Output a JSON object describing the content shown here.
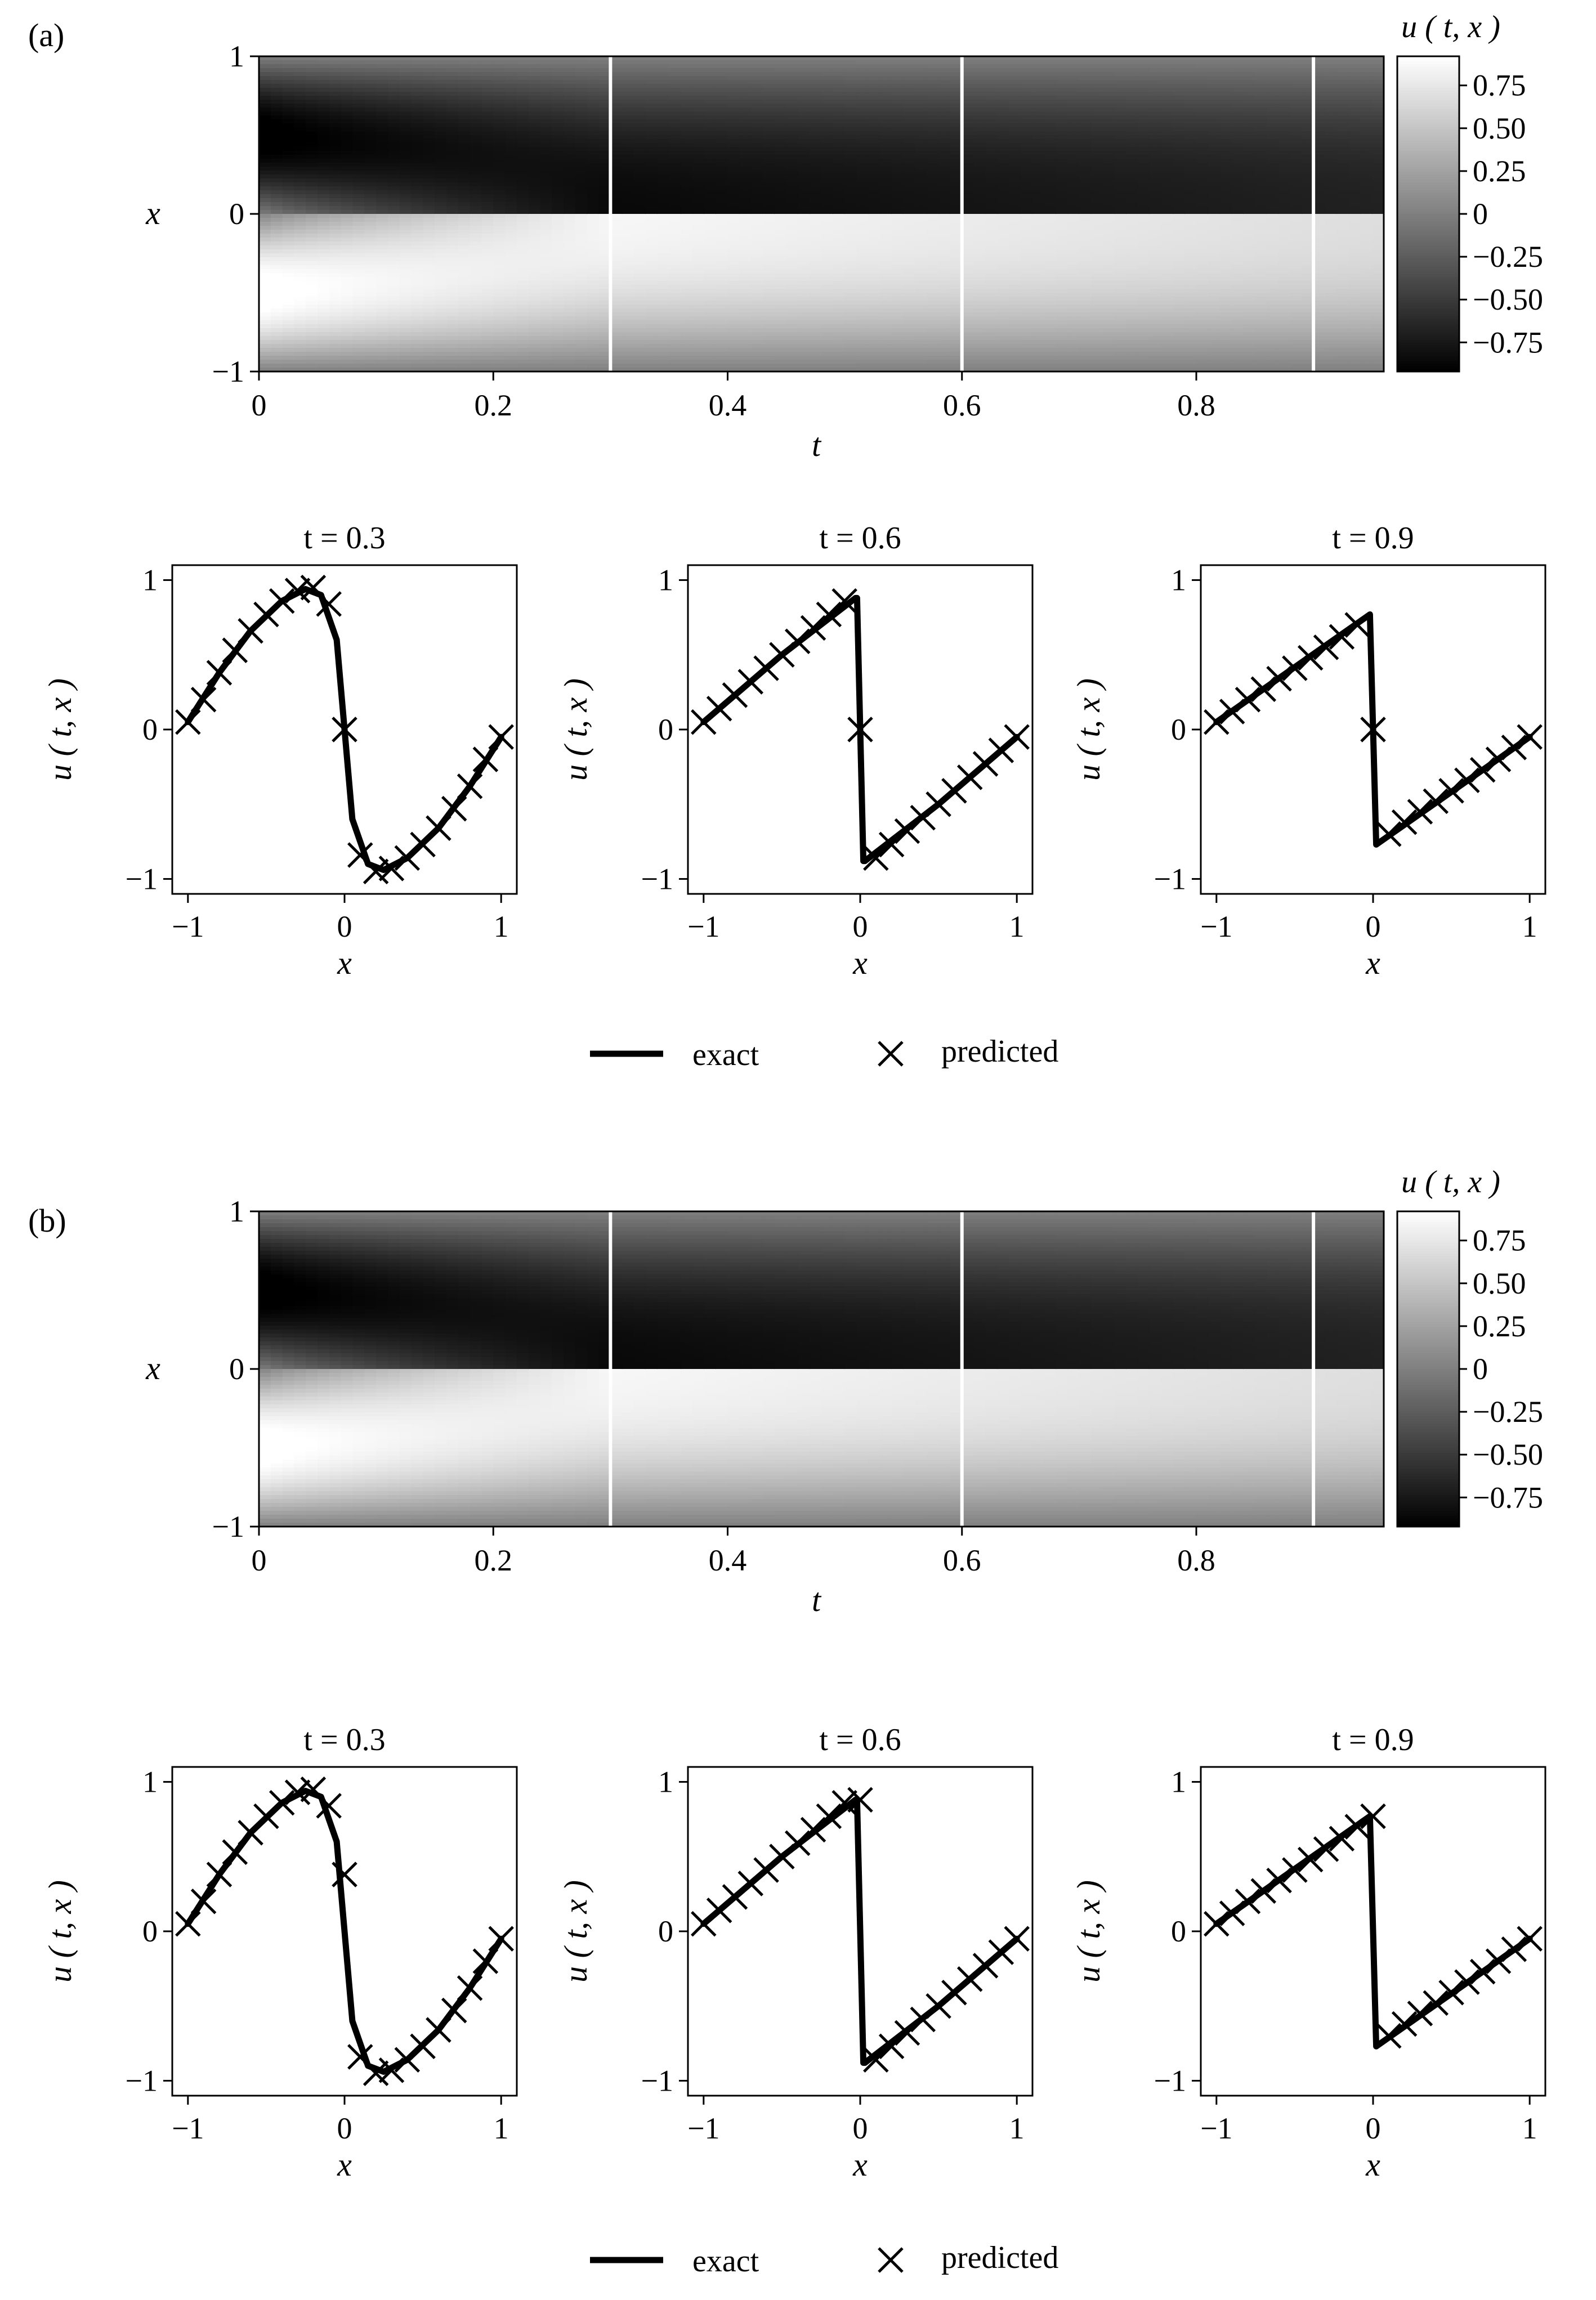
{
  "figure": {
    "panels": [
      {
        "label": "(a)",
        "heatmap": {
          "xlabel": "t",
          "ylabel": "x",
          "xticks": [
            "0",
            "0.2",
            "0.4",
            "0.6",
            "0.8"
          ],
          "yticks": [
            "1",
            "0",
            "−1"
          ],
          "colorbar_title": "u ( t, x )",
          "colorbar_ticks": [
            "0.75",
            "0.50",
            "0.25",
            "0",
            "−0.25",
            "−0.50",
            "−0.75"
          ]
        },
        "slices": [
          {
            "title": "t = 0.3",
            "xlabel": "x",
            "ylabel": "u ( t, x )",
            "xticks": [
              "−1",
              "0",
              "1"
            ],
            "yticks": [
              "1",
              "0",
              "−1"
            ]
          },
          {
            "title": "t = 0.6",
            "xlabel": "x",
            "ylabel": "u ( t, x )",
            "xticks": [
              "−1",
              "0",
              "1"
            ],
            "yticks": [
              "1",
              "0",
              "−1"
            ]
          },
          {
            "title": "t = 0.9",
            "xlabel": "x",
            "ylabel": "u ( t, x )",
            "xticks": [
              "−1",
              "0",
              "1"
            ],
            "yticks": [
              "1",
              "0",
              "−1"
            ]
          }
        ],
        "legend": {
          "exact": "exact",
          "predicted": "predicted"
        }
      },
      {
        "label": "(b)",
        "heatmap": {
          "xlabel": "t",
          "ylabel": "x",
          "xticks": [
            "0",
            "0.2",
            "0.4",
            "0.6",
            "0.8"
          ],
          "yticks": [
            "1",
            "0",
            "−1"
          ],
          "colorbar_title": "u ( t, x )",
          "colorbar_ticks": [
            "0.75",
            "0.50",
            "0.25",
            "0",
            "−0.25",
            "−0.50",
            "−0.75"
          ]
        },
        "slices": [
          {
            "title": "t = 0.3",
            "xlabel": "x",
            "ylabel": "u ( t, x )",
            "xticks": [
              "−1",
              "0",
              "1"
            ],
            "yticks": [
              "1",
              "0",
              "−1"
            ]
          },
          {
            "title": "t = 0.6",
            "xlabel": "x",
            "ylabel": "u ( t, x )",
            "xticks": [
              "−1",
              "0",
              "1"
            ],
            "yticks": [
              "1",
              "0",
              "−1"
            ]
          },
          {
            "title": "t = 0.9",
            "xlabel": "x",
            "ylabel": "u ( t, x )",
            "xticks": [
              "−1",
              "0",
              "1"
            ],
            "yticks": [
              "1",
              "0",
              "−1"
            ]
          }
        ],
        "legend": {
          "exact": "exact",
          "predicted": "predicted"
        }
      }
    ]
  },
  "chart_data": [
    {
      "type": "heatmap",
      "panel": "(a)",
      "xlabel": "t",
      "ylabel": "x",
      "xlim": [
        0,
        0.96
      ],
      "ylim": [
        -1,
        1
      ],
      "colorbar_label": "u ( t, x )",
      "colorbar_range": [
        -0.92,
        0.92
      ],
      "colormap": "gray",
      "vertical_lines_t": [
        0.3,
        0.6,
        0.9
      ],
      "line_color": "#ffffff",
      "description_values": {
        "t": [
          0,
          0.1,
          0.3,
          0.6,
          0.9
        ],
        "peak_positive": [
          0.95,
          0.93,
          0.93,
          0.9,
          0.78
        ],
        "peak_negative": [
          -0.95,
          -0.93,
          -0.93,
          -0.9,
          -0.78
        ]
      }
    },
    {
      "type": "line",
      "panel": "(a)",
      "title": "t = 0.3",
      "xlabel": "x",
      "ylabel": "u ( t, x )",
      "xlim": [
        -1.1,
        1.1
      ],
      "ylim": [
        -1.1,
        1.1
      ],
      "series": [
        {
          "name": "exact",
          "x": [
            -1.0,
            -0.8,
            -0.6,
            -0.4,
            -0.25,
            -0.15,
            -0.05,
            0.0,
            0.05,
            0.15,
            0.25,
            0.4,
            0.6,
            0.8,
            1.0
          ],
          "y": [
            0.05,
            0.38,
            0.66,
            0.86,
            0.94,
            0.9,
            0.6,
            0.0,
            -0.6,
            -0.9,
            -0.94,
            -0.86,
            -0.66,
            -0.38,
            -0.05
          ]
        },
        {
          "name": "predicted",
          "x": [
            -1.0,
            -0.9,
            -0.8,
            -0.7,
            -0.6,
            -0.5,
            -0.4,
            -0.3,
            -0.2,
            -0.1,
            0.0,
            0.1,
            0.2,
            0.3,
            0.4,
            0.5,
            0.6,
            0.7,
            0.8,
            0.9,
            1.0
          ],
          "y": [
            0.05,
            0.2,
            0.38,
            0.53,
            0.66,
            0.77,
            0.86,
            0.93,
            0.95,
            0.84,
            0.0,
            -0.84,
            -0.95,
            -0.93,
            -0.86,
            -0.77,
            -0.66,
            -0.53,
            -0.38,
            -0.2,
            -0.05
          ]
        }
      ]
    },
    {
      "type": "line",
      "panel": "(a)",
      "title": "t = 0.6",
      "xlabel": "x",
      "ylabel": "u ( t, x )",
      "xlim": [
        -1.1,
        1.1
      ],
      "ylim": [
        -1.1,
        1.1
      ],
      "series": [
        {
          "name": "exact",
          "x": [
            -1.0,
            -0.5,
            -0.03,
            -0.02,
            0.0,
            0.02,
            0.03,
            0.5,
            1.0
          ],
          "y": [
            0.05,
            0.5,
            0.88,
            0.88,
            0.0,
            -0.88,
            -0.88,
            -0.5,
            -0.05
          ]
        },
        {
          "name": "predicted",
          "x": [
            -1.0,
            -0.9,
            -0.8,
            -0.7,
            -0.6,
            -0.5,
            -0.4,
            -0.3,
            -0.2,
            -0.1,
            0.0,
            0.1,
            0.2,
            0.3,
            0.4,
            0.5,
            0.6,
            0.7,
            0.8,
            0.9,
            1.0
          ],
          "y": [
            0.05,
            0.14,
            0.23,
            0.32,
            0.41,
            0.5,
            0.59,
            0.68,
            0.77,
            0.86,
            0.0,
            -0.86,
            -0.77,
            -0.68,
            -0.59,
            -0.5,
            -0.41,
            -0.32,
            -0.23,
            -0.14,
            -0.05
          ]
        }
      ]
    },
    {
      "type": "line",
      "panel": "(a)",
      "title": "t = 0.9",
      "xlabel": "x",
      "ylabel": "u ( t, x )",
      "xlim": [
        -1.1,
        1.1
      ],
      "ylim": [
        -1.1,
        1.1
      ],
      "series": [
        {
          "name": "exact",
          "x": [
            -1.0,
            -0.02,
            0.0,
            0.02,
            1.0
          ],
          "y": [
            0.05,
            0.77,
            0.0,
            -0.77,
            -0.05
          ]
        },
        {
          "name": "predicted",
          "x": [
            -1.0,
            -0.9,
            -0.8,
            -0.7,
            -0.6,
            -0.5,
            -0.4,
            -0.3,
            -0.2,
            -0.1,
            0.0,
            0.1,
            0.2,
            0.3,
            0.4,
            0.5,
            0.6,
            0.7,
            0.8,
            0.9,
            1.0
          ],
          "y": [
            0.05,
            0.12,
            0.2,
            0.27,
            0.34,
            0.41,
            0.48,
            0.55,
            0.62,
            0.7,
            0.0,
            -0.7,
            -0.62,
            -0.55,
            -0.48,
            -0.41,
            -0.34,
            -0.27,
            -0.2,
            -0.12,
            -0.05
          ]
        }
      ]
    },
    {
      "type": "heatmap",
      "panel": "(b)",
      "xlabel": "t",
      "ylabel": "x",
      "xlim": [
        0,
        0.96
      ],
      "ylim": [
        -1,
        1
      ],
      "colorbar_label": "u ( t, x )",
      "colorbar_range": [
        -0.92,
        0.92
      ],
      "colormap": "gray",
      "vertical_lines_t": [
        0.3,
        0.6,
        0.9
      ],
      "line_color": "#ffffff"
    },
    {
      "type": "line",
      "panel": "(b)",
      "title": "t = 0.3",
      "xlabel": "x",
      "ylabel": "u ( t, x )",
      "xlim": [
        -1.1,
        1.1
      ],
      "ylim": [
        -1.1,
        1.1
      ],
      "series": [
        {
          "name": "exact",
          "x": [
            -1.0,
            -0.8,
            -0.6,
            -0.4,
            -0.25,
            -0.15,
            -0.05,
            0.0,
            0.05,
            0.15,
            0.25,
            0.4,
            0.6,
            0.8,
            1.0
          ],
          "y": [
            0.05,
            0.38,
            0.66,
            0.86,
            0.94,
            0.9,
            0.6,
            0.0,
            -0.6,
            -0.9,
            -0.94,
            -0.86,
            -0.66,
            -0.38,
            -0.05
          ]
        },
        {
          "name": "predicted",
          "x": [
            -1.0,
            -0.9,
            -0.8,
            -0.7,
            -0.6,
            -0.5,
            -0.4,
            -0.3,
            -0.2,
            -0.1,
            0.0,
            0.1,
            0.2,
            0.3,
            0.4,
            0.5,
            0.6,
            0.7,
            0.8,
            0.9,
            1.0
          ],
          "y": [
            0.05,
            0.2,
            0.38,
            0.53,
            0.66,
            0.77,
            0.86,
            0.93,
            0.95,
            0.84,
            0.38,
            -0.84,
            -0.95,
            -0.93,
            -0.86,
            -0.77,
            -0.66,
            -0.53,
            -0.38,
            -0.2,
            -0.05
          ]
        }
      ]
    },
    {
      "type": "line",
      "panel": "(b)",
      "title": "t = 0.6",
      "xlabel": "x",
      "ylabel": "u ( t, x )",
      "xlim": [
        -1.1,
        1.1
      ],
      "ylim": [
        -1.1,
        1.1
      ],
      "series": [
        {
          "name": "exact",
          "x": [
            -1.0,
            -0.5,
            -0.03,
            -0.02,
            0.0,
            0.02,
            0.03,
            0.5,
            1.0
          ],
          "y": [
            0.05,
            0.5,
            0.88,
            0.88,
            0.0,
            -0.88,
            -0.88,
            -0.5,
            -0.05
          ]
        },
        {
          "name": "predicted",
          "x": [
            -1.0,
            -0.9,
            -0.8,
            -0.7,
            -0.6,
            -0.5,
            -0.4,
            -0.3,
            -0.2,
            -0.1,
            0.0,
            0.1,
            0.2,
            0.3,
            0.4,
            0.5,
            0.6,
            0.7,
            0.8,
            0.9,
            1.0
          ],
          "y": [
            0.05,
            0.14,
            0.23,
            0.32,
            0.41,
            0.5,
            0.59,
            0.68,
            0.77,
            0.86,
            0.88,
            -0.86,
            -0.77,
            -0.68,
            -0.59,
            -0.5,
            -0.41,
            -0.32,
            -0.23,
            -0.14,
            -0.05
          ]
        }
      ]
    },
    {
      "type": "line",
      "panel": "(b)",
      "title": "t = 0.9",
      "xlabel": "x",
      "ylabel": "u ( t, x )",
      "xlim": [
        -1.1,
        1.1
      ],
      "ylim": [
        -1.1,
        1.1
      ],
      "series": [
        {
          "name": "exact",
          "x": [
            -1.0,
            -0.02,
            0.0,
            0.02,
            1.0
          ],
          "y": [
            0.05,
            0.77,
            0.0,
            -0.77,
            -0.05
          ]
        },
        {
          "name": "predicted",
          "x": [
            -1.0,
            -0.9,
            -0.8,
            -0.7,
            -0.6,
            -0.5,
            -0.4,
            -0.3,
            -0.2,
            -0.1,
            0.0,
            0.1,
            0.2,
            0.3,
            0.4,
            0.5,
            0.6,
            0.7,
            0.8,
            0.9,
            1.0
          ],
          "y": [
            0.05,
            0.12,
            0.2,
            0.27,
            0.34,
            0.41,
            0.48,
            0.55,
            0.62,
            0.7,
            0.77,
            -0.7,
            -0.62,
            -0.55,
            -0.48,
            -0.41,
            -0.34,
            -0.27,
            -0.2,
            -0.12,
            -0.05
          ]
        }
      ]
    }
  ]
}
